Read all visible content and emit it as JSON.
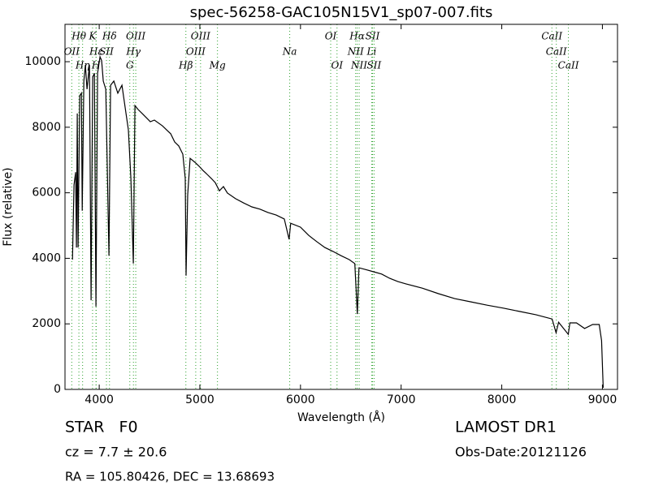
{
  "chart_data": {
    "type": "line",
    "title": "spec-56258-GAC105N15V1_sp07-007.fits",
    "xlabel": "Wavelength (Å)",
    "ylabel": "Flux (relative)",
    "color": "#000000",
    "line_color": "#2ca02c",
    "xlim": [
      3660,
      9150
    ],
    "ylim": [
      0,
      11140
    ],
    "xticks": [
      4000,
      5000,
      6000,
      7000,
      8000,
      9000
    ],
    "yticks": [
      0,
      2000,
      4000,
      6000,
      8000,
      10000
    ],
    "x": [
      3734,
      3750,
      3766,
      3774,
      3782,
      3790,
      3806,
      3823,
      3831,
      3847,
      3863,
      3879,
      3903,
      3919,
      3935,
      3952,
      3968,
      3984,
      4008,
      4024,
      4040,
      4065,
      4097,
      4113,
      4145,
      4185,
      4226,
      4266,
      4290,
      4315,
      4339,
      4355,
      4387,
      4427,
      4468,
      4508,
      4548,
      4629,
      4669,
      4710,
      4750,
      4790,
      4831,
      4855,
      4863,
      4879,
      4903,
      4952,
      4992,
      5032,
      5073,
      5113,
      5153,
      5194,
      5234,
      5274,
      5355,
      5435,
      5516,
      5597,
      5677,
      5758,
      5839,
      5887,
      5903,
      6000,
      6081,
      6161,
      6242,
      6323,
      6403,
      6484,
      6540,
      6565,
      6581,
      6645,
      6726,
      6806,
      6887,
      6968,
      7048,
      7210,
      7371,
      7532,
      7694,
      7855,
      8016,
      8177,
      8339,
      8500,
      8540,
      8565,
      8661,
      8677,
      8742,
      8823,
      8903,
      8968,
      8992,
      9008
    ],
    "values": [
      3960,
      6240,
      6630,
      4330,
      8420,
      4330,
      8960,
      9040,
      5450,
      9410,
      9900,
      9160,
      9900,
      2720,
      9530,
      9650,
      2530,
      9650,
      10150,
      10030,
      9410,
      9160,
      4080,
      9280,
      9410,
      9040,
      9280,
      8420,
      7920,
      6440,
      3840,
      8660,
      8540,
      8420,
      8290,
      8170,
      8220,
      8040,
      7920,
      7800,
      7550,
      7430,
      7180,
      6440,
      3470,
      5940,
      7050,
      6930,
      6810,
      6680,
      6560,
      6440,
      6310,
      6060,
      6190,
      5990,
      5820,
      5690,
      5570,
      5500,
      5400,
      5320,
      5200,
      4580,
      5070,
      4950,
      4700,
      4510,
      4330,
      4210,
      4080,
      3960,
      3840,
      2300,
      3710,
      3660,
      3590,
      3520,
      3390,
      3290,
      3220,
      3090,
      2920,
      2770,
      2670,
      2570,
      2480,
      2380,
      2280,
      2150,
      1730,
      2050,
      1680,
      2030,
      2030,
      1860,
      1980,
      1980,
      1490,
      50
    ],
    "annotations": [
      {
        "label": "Hθ",
        "x": 3798
      },
      {
        "label": "K",
        "x": 3934
      },
      {
        "label": "Hδ",
        "x": 4102
      },
      {
        "label": "OIII",
        "x": 4363
      },
      {
        "label": "OIII",
        "x": 5007
      },
      {
        "label": "OI",
        "x": 6300
      },
      {
        "label": "Hα",
        "x": 6563
      },
      {
        "label": "SII",
        "x": 6716
      },
      {
        "label": "CaII",
        "x": 8498
      },
      {
        "label": "OII",
        "x": 3727
      },
      {
        "label": "Hε",
        "x": 3970
      },
      {
        "label": "SII",
        "x": 4072
      },
      {
        "label": "Hγ",
        "x": 4340
      },
      {
        "label": "OIII",
        "x": 4959
      },
      {
        "label": "Na",
        "x": 5893
      },
      {
        "label": "NII",
        "x": 6548
      },
      {
        "label": "Li",
        "x": 6707
      },
      {
        "label": "CaII",
        "x": 8542
      },
      {
        "label": "Hη",
        "x": 3835
      },
      {
        "label": "H",
        "x": 3968
      },
      {
        "label": "G",
        "x": 4304
      },
      {
        "label": "Hβ",
        "x": 4861
      },
      {
        "label": "Mg",
        "x": 5175
      },
      {
        "label": "OI",
        "x": 6363
      },
      {
        "label": "NII",
        "x": 6583
      },
      {
        "label": "SII",
        "x": 6731
      },
      {
        "label": "CaII",
        "x": 8662
      }
    ]
  },
  "info": {
    "object": "STAR   F0",
    "cz": "cz = 7.7 ± 20.6",
    "coords": "RA = 105.80426, DEC = 13.68693",
    "survey": "LAMOST DR1",
    "date": "Obs-Date:20121126"
  }
}
